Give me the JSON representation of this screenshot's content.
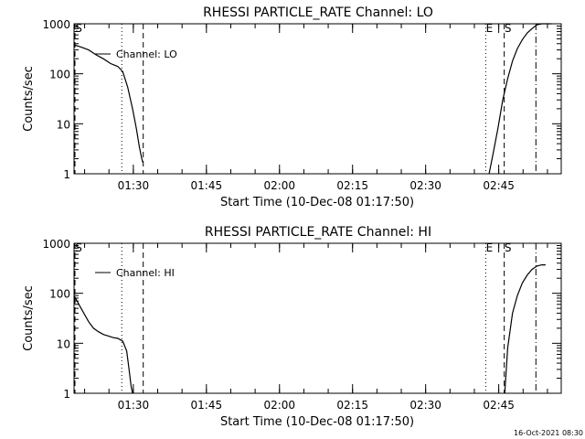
{
  "timestamp": "16-Oct-2021 08:30",
  "chart_data": [
    {
      "type": "line",
      "title": "RHESSI PARTICLE_RATE Channel: LO",
      "xlabel": "Start Time (10-Dec-08 01:17:50)",
      "ylabel": "Counts/sec",
      "x_unit": "minutes after 01:17:50",
      "xlim": [
        0,
        100
      ],
      "ylim": [
        1,
        1000
      ],
      "yscale": "log",
      "xticks": [
        {
          "label": "01:30",
          "value": 12.17
        },
        {
          "label": "01:45",
          "value": 27.17
        },
        {
          "label": "02:00",
          "value": 42.17
        },
        {
          "label": "02:15",
          "value": 57.17
        },
        {
          "label": "02:30",
          "value": 72.17
        },
        {
          "label": "02:45",
          "value": 87.17
        }
      ],
      "yticks": [
        {
          "label": "1",
          "value": 1
        },
        {
          "label": "10",
          "value": 10
        },
        {
          "label": "100",
          "value": 100
        },
        {
          "label": "1000",
          "value": 1000
        }
      ],
      "legend": {
        "label": "Channel: LO",
        "placement": "top-left"
      },
      "markers": [
        {
          "label": "S",
          "style": "dashed",
          "x": -0.2
        },
        {
          "label": "",
          "style": "dotted",
          "x": 9.8
        },
        {
          "label": "",
          "style": "dashed",
          "x": 14.2
        },
        {
          "label": "E",
          "style": "dotted",
          "x": 84.5
        },
        {
          "label": "S",
          "style": "dashed",
          "x": 88.3
        },
        {
          "label": "",
          "style": "dashdot",
          "x": 94.8
        }
      ],
      "series": [
        {
          "name": "Channel: LO",
          "segments": [
            {
              "x": [
                0,
                1.5,
                3,
                4.5,
                6,
                7.5,
                9,
                10,
                11,
                12,
                12.8,
                13.4,
                13.9,
                14.1
              ],
              "y": [
                380,
                340,
                300,
                240,
                200,
                160,
                140,
                110,
                55,
                20,
                8,
                3.5,
                2,
                1.7
              ]
            },
            {
              "x": [
                85.2,
                86,
                87,
                88,
                89,
                90,
                91,
                92,
                93,
                94,
                95,
                96,
                97,
                98
              ],
              "y": [
                1,
                2.5,
                8,
                30,
                80,
                180,
                320,
                480,
                650,
                800,
                950,
                1000,
                1000,
                1000
              ]
            }
          ]
        }
      ]
    },
    {
      "type": "line",
      "title": "RHESSI PARTICLE_RATE Channel: HI",
      "xlabel": "Start Time (10-Dec-08 01:17:50)",
      "ylabel": "Counts/sec",
      "x_unit": "minutes after 01:17:50",
      "xlim": [
        0,
        100
      ],
      "ylim": [
        1,
        1000
      ],
      "yscale": "log",
      "xticks": [
        {
          "label": "01:30",
          "value": 12.17
        },
        {
          "label": "01:45",
          "value": 27.17
        },
        {
          "label": "02:00",
          "value": 42.17
        },
        {
          "label": "02:15",
          "value": 57.17
        },
        {
          "label": "02:30",
          "value": 72.17
        },
        {
          "label": "02:45",
          "value": 87.17
        }
      ],
      "yticks": [
        {
          "label": "1",
          "value": 1
        },
        {
          "label": "10",
          "value": 10
        },
        {
          "label": "100",
          "value": 100
        },
        {
          "label": "1000",
          "value": 1000
        }
      ],
      "legend": {
        "label": "Channel: HI",
        "placement": "top-left"
      },
      "markers": [
        {
          "label": "S",
          "style": "dashed",
          "x": -0.2
        },
        {
          "label": "",
          "style": "dotted",
          "x": 9.8
        },
        {
          "label": "",
          "style": "dashed",
          "x": 14.2
        },
        {
          "label": "E",
          "style": "dotted",
          "x": 84.5
        },
        {
          "label": "S",
          "style": "dashed",
          "x": 88.3
        },
        {
          "label": "",
          "style": "dashdot",
          "x": 94.8
        }
      ],
      "series": [
        {
          "name": "Channel: HI",
          "segments": [
            {
              "x": [
                0,
                1,
                2,
                3,
                4,
                5,
                6,
                7,
                8,
                9,
                10,
                10.8,
                11.3,
                11.7,
                12
              ],
              "y": [
                90,
                60,
                40,
                27,
                20,
                17,
                15,
                14,
                13,
                12.5,
                11,
                7,
                3,
                1.4,
                1
              ]
            },
            {
              "x": [
                88.4,
                89,
                90,
                91,
                92,
                93,
                94,
                95,
                96,
                96.8
              ],
              "y": [
                1,
                8,
                40,
                90,
                160,
                230,
                300,
                350,
                370,
                370
              ]
            }
          ]
        }
      ]
    }
  ]
}
